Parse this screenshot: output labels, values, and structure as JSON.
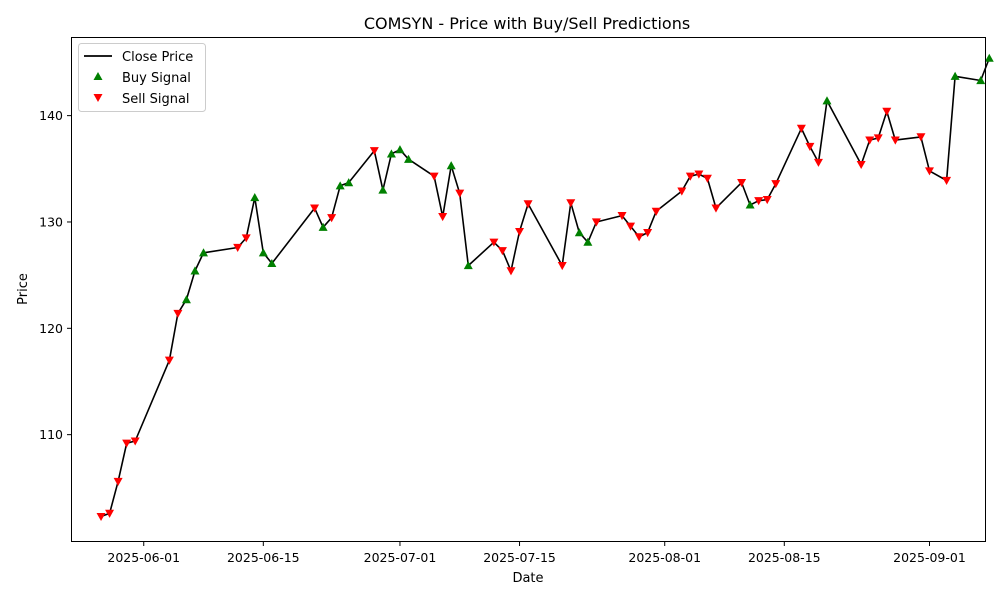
{
  "chart_data": {
    "type": "line",
    "title": "COMSYN - Price with Buy/Sell Predictions",
    "xlabel": "Date",
    "ylabel": "Price",
    "xlim": [
      "2025-05-24",
      "2025-09-04"
    ],
    "ylim": [
      100.0,
      147.3
    ],
    "x_ticks": [
      "2025-06-01",
      "2025-06-15",
      "2025-07-01",
      "2025-07-15",
      "2025-08-01",
      "2025-08-15",
      "2025-09-01"
    ],
    "y_ticks": [
      110,
      120,
      130,
      140
    ],
    "grid": false,
    "legend_position": "top-left",
    "legend": [
      "Close Price",
      "Buy Signal",
      "Sell Signal"
    ],
    "colors": {
      "line": "#000000",
      "buy": "#008000",
      "sell": "#ff0000"
    },
    "series": [
      {
        "name": "Close Price",
        "points": [
          {
            "x": "2025-05-27",
            "y": 102.3,
            "signal": "sell"
          },
          {
            "x": "2025-05-28",
            "y": 102.6,
            "signal": "sell"
          },
          {
            "x": "2025-05-29",
            "y": 105.6,
            "signal": "sell"
          },
          {
            "x": "2025-05-30",
            "y": 109.2,
            "signal": "sell"
          },
          {
            "x": "2025-05-31",
            "y": 109.4,
            "signal": "sell"
          },
          {
            "x": "2025-06-04",
            "y": 117.0,
            "signal": "sell"
          },
          {
            "x": "2025-06-05",
            "y": 121.4,
            "signal": "sell"
          },
          {
            "x": "2025-06-06",
            "y": 122.7,
            "signal": "buy"
          },
          {
            "x": "2025-06-07",
            "y": 125.4,
            "signal": "buy"
          },
          {
            "x": "2025-06-08",
            "y": 127.1,
            "signal": "buy"
          },
          {
            "x": "2025-06-12",
            "y": 127.6,
            "signal": "sell"
          },
          {
            "x": "2025-06-13",
            "y": 128.5,
            "signal": "sell"
          },
          {
            "x": "2025-06-14",
            "y": 132.3,
            "signal": "buy"
          },
          {
            "x": "2025-06-15",
            "y": 127.1,
            "signal": "buy"
          },
          {
            "x": "2025-06-16",
            "y": 126.1,
            "signal": "buy"
          },
          {
            "x": "2025-06-21",
            "y": 131.3,
            "signal": "sell"
          },
          {
            "x": "2025-06-22",
            "y": 129.5,
            "signal": "buy"
          },
          {
            "x": "2025-06-23",
            "y": 130.4,
            "signal": "sell"
          },
          {
            "x": "2025-06-24",
            "y": 133.4,
            "signal": "buy"
          },
          {
            "x": "2025-06-25",
            "y": 133.7,
            "signal": "buy"
          },
          {
            "x": "2025-06-28",
            "y": 136.7,
            "signal": "sell"
          },
          {
            "x": "2025-06-29",
            "y": 133.0,
            "signal": "buy"
          },
          {
            "x": "2025-06-30",
            "y": 136.4,
            "signal": "buy"
          },
          {
            "x": "2025-07-01",
            "y": 136.8,
            "signal": "buy"
          },
          {
            "x": "2025-07-02",
            "y": 135.9,
            "signal": "buy"
          },
          {
            "x": "2025-07-05",
            "y": 134.3,
            "signal": "sell"
          },
          {
            "x": "2025-07-06",
            "y": 130.5,
            "signal": "sell"
          },
          {
            "x": "2025-07-07",
            "y": 135.3,
            "signal": "buy"
          },
          {
            "x": "2025-07-08",
            "y": 132.7,
            "signal": "sell"
          },
          {
            "x": "2025-07-09",
            "y": 125.9,
            "signal": "buy"
          },
          {
            "x": "2025-07-12",
            "y": 128.1,
            "signal": "sell"
          },
          {
            "x": "2025-07-13",
            "y": 127.3,
            "signal": "sell"
          },
          {
            "x": "2025-07-14",
            "y": 125.4,
            "signal": "sell"
          },
          {
            "x": "2025-07-15",
            "y": 129.1,
            "signal": "sell"
          },
          {
            "x": "2025-07-16",
            "y": 131.7,
            "signal": "sell"
          },
          {
            "x": "2025-07-20",
            "y": 125.9,
            "signal": "sell"
          },
          {
            "x": "2025-07-21",
            "y": 131.8,
            "signal": "sell"
          },
          {
            "x": "2025-07-22",
            "y": 129.0,
            "signal": "buy"
          },
          {
            "x": "2025-07-23",
            "y": 128.1,
            "signal": "buy"
          },
          {
            "x": "2025-07-24",
            "y": 130.0,
            "signal": "sell"
          },
          {
            "x": "2025-07-27",
            "y": 130.6,
            "signal": "sell"
          },
          {
            "x": "2025-07-28",
            "y": 129.6,
            "signal": "sell"
          },
          {
            "x": "2025-07-29",
            "y": 128.6,
            "signal": "sell"
          },
          {
            "x": "2025-07-30",
            "y": 129.0,
            "signal": "sell"
          },
          {
            "x": "2025-07-31",
            "y": 131.0,
            "signal": "sell"
          },
          {
            "x": "2025-08-03",
            "y": 132.9,
            "signal": "sell"
          },
          {
            "x": "2025-08-04",
            "y": 134.3,
            "signal": "sell"
          },
          {
            "x": "2025-08-05",
            "y": 134.5,
            "signal": "sell"
          },
          {
            "x": "2025-08-06",
            "y": 134.1,
            "signal": "sell"
          },
          {
            "x": "2025-08-07",
            "y": 131.3,
            "signal": "sell"
          },
          {
            "x": "2025-08-10",
            "y": 133.7,
            "signal": "sell"
          },
          {
            "x": "2025-08-11",
            "y": 131.6,
            "signal": "buy"
          },
          {
            "x": "2025-08-12",
            "y": 132.0,
            "signal": "sell"
          },
          {
            "x": "2025-08-13",
            "y": 132.1,
            "signal": "sell"
          },
          {
            "x": "2025-08-14",
            "y": 133.6,
            "signal": "sell"
          },
          {
            "x": "2025-08-17",
            "y": 138.8,
            "signal": "sell"
          },
          {
            "x": "2025-08-18",
            "y": 137.1,
            "signal": "sell"
          },
          {
            "x": "2025-08-19",
            "y": 135.6,
            "signal": "sell"
          },
          {
            "x": "2025-08-20",
            "y": 141.4,
            "signal": "buy"
          },
          {
            "x": "2025-08-24",
            "y": 135.4,
            "signal": "sell"
          },
          {
            "x": "2025-08-25",
            "y": 137.7,
            "signal": "sell"
          },
          {
            "x": "2025-08-26",
            "y": 137.9,
            "signal": "sell"
          },
          {
            "x": "2025-08-27",
            "y": 140.4,
            "signal": "sell"
          },
          {
            "x": "2025-08-28",
            "y": 137.7,
            "signal": "sell"
          },
          {
            "x": "2025-08-31",
            "y": 138.0,
            "signal": "sell"
          },
          {
            "x": "2025-09-01",
            "y": 134.8,
            "signal": "sell"
          },
          {
            "x": "2025-09-03",
            "y": 133.9,
            "signal": "sell"
          },
          {
            "x": "2025-09-04",
            "y": 143.7,
            "signal": "buy"
          },
          {
            "x": "2025-09-07",
            "y": 143.3,
            "signal": "buy"
          },
          {
            "x": "2025-09-08",
            "y": 145.4,
            "signal": "buy"
          }
        ]
      }
    ]
  }
}
